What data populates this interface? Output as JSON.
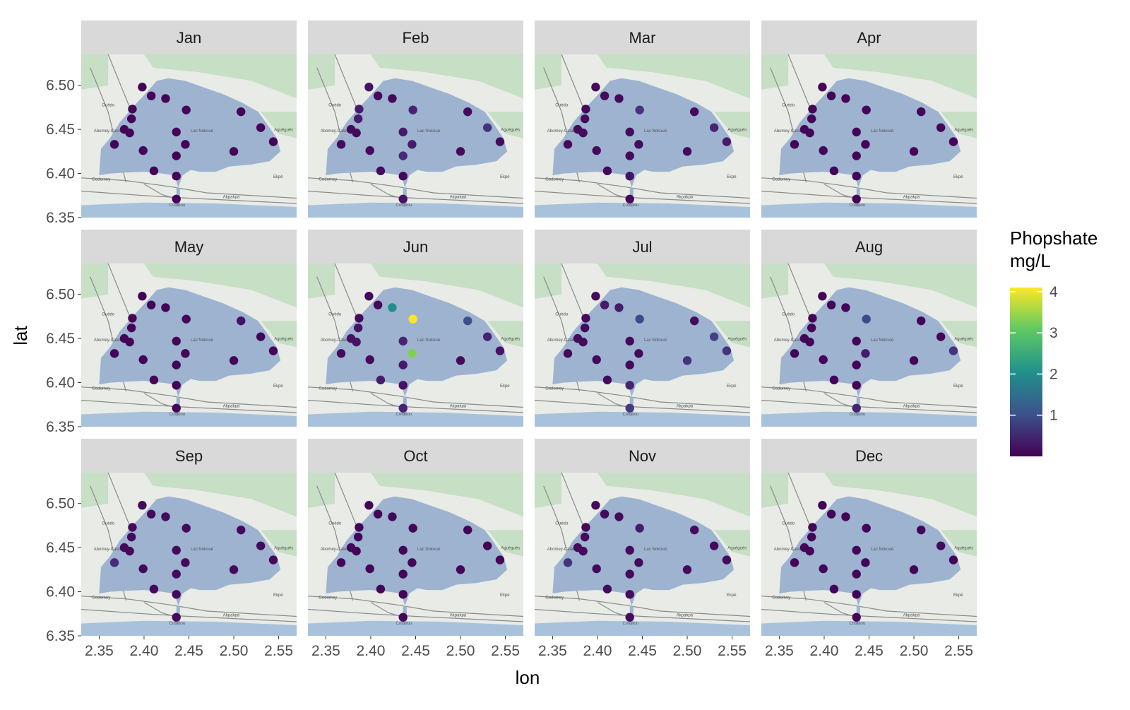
{
  "chart_data": {
    "type": "scatter",
    "facet_by": "month",
    "layout": {
      "rows": 3,
      "cols": 4
    },
    "xlabel": "lon",
    "ylabel": "lat",
    "xlim": [
      2.33,
      2.57
    ],
    "ylim": [
      6.35,
      6.535
    ],
    "xticks": [
      2.35,
      2.4,
      2.45,
      2.5,
      2.55
    ],
    "xtick_labels": [
      "2.35",
      "2.40",
      "2.45",
      "2.50",
      "2.55"
    ],
    "yticks": [
      6.35,
      6.4,
      6.45,
      6.5
    ],
    "ytick_labels": [
      "6.35",
      "6.40",
      "6.45",
      "6.50"
    ],
    "legend": {
      "title_lines": [
        "Phopshate",
        "mg/L"
      ],
      "placement": "right",
      "scale": "viridis",
      "min": 0,
      "max": 4.1,
      "ticks": [
        1,
        2,
        3,
        4
      ],
      "tick_labels": [
        "1",
        "2",
        "3",
        "4"
      ]
    },
    "colors": {
      "panel_strip": "#d9d9d9",
      "lagoon": "#9db3cf",
      "land": "#e8ebe6",
      "vegetation": "#c7dfc4",
      "ocean": "#a9c2dc",
      "road": "#8a8a8a"
    },
    "basemap_labels": [
      "Abomey-Calavi",
      "Cotonou",
      "Ouèdo",
      "Aguégués",
      "Akpakpa",
      "Ekpè",
      "Godomey",
      "Lac Nokoué"
    ],
    "stations": [
      {
        "lon": 2.398,
        "lat": 6.498
      },
      {
        "lon": 2.408,
        "lat": 6.488
      },
      {
        "lon": 2.424,
        "lat": 6.485
      },
      {
        "lon": 2.387,
        "lat": 6.473
      },
      {
        "lon": 2.447,
        "lat": 6.472
      },
      {
        "lon": 2.508,
        "lat": 6.47
      },
      {
        "lon": 2.386,
        "lat": 6.462
      },
      {
        "lon": 2.53,
        "lat": 6.452
      },
      {
        "lon": 2.378,
        "lat": 6.45
      },
      {
        "lon": 2.384,
        "lat": 6.446
      },
      {
        "lon": 2.436,
        "lat": 6.447
      },
      {
        "lon": 2.367,
        "lat": 6.433
      },
      {
        "lon": 2.446,
        "lat": 6.433
      },
      {
        "lon": 2.544,
        "lat": 6.436
      },
      {
        "lon": 2.399,
        "lat": 6.426
      },
      {
        "lon": 2.5,
        "lat": 6.425
      },
      {
        "lon": 2.436,
        "lat": 6.42
      },
      {
        "lon": 2.411,
        "lat": 6.403
      },
      {
        "lon": 2.436,
        "lat": 6.397
      },
      {
        "lon": 2.436,
        "lat": 6.371
      }
    ],
    "panels": [
      {
        "month": "Jan",
        "values": [
          0.05,
          0.05,
          0.05,
          0.05,
          0.05,
          0.05,
          0.05,
          0.05,
          0.05,
          0.05,
          0.05,
          0.05,
          0.05,
          0.05,
          0.05,
          0.05,
          0.05,
          0.05,
          0.05,
          0.05
        ]
      },
      {
        "month": "Feb",
        "values": [
          0.2,
          0.1,
          0.1,
          0.3,
          0.4,
          0.1,
          0.3,
          0.6,
          0.1,
          0.1,
          0.3,
          0.1,
          0.3,
          0.1,
          0.1,
          0.1,
          0.5,
          0.1,
          0.1,
          0.2
        ]
      },
      {
        "month": "Mar",
        "values": [
          0.1,
          0.1,
          0.1,
          0.1,
          0.6,
          0.1,
          0.1,
          0.4,
          0.1,
          0.1,
          0.1,
          0.1,
          0.1,
          0.3,
          0.1,
          0.1,
          0.1,
          0.1,
          0.2,
          0.1
        ]
      },
      {
        "month": "Apr",
        "values": [
          0.05,
          0.05,
          0.05,
          0.05,
          0.05,
          0.05,
          0.05,
          0.05,
          0.05,
          0.05,
          0.05,
          0.05,
          0.05,
          0.05,
          0.05,
          0.05,
          0.05,
          0.05,
          0.05,
          0.05
        ]
      },
      {
        "month": "May",
        "values": [
          0.05,
          0.05,
          0.05,
          0.05,
          0.05,
          0.2,
          0.05,
          0.05,
          0.05,
          0.05,
          0.05,
          0.05,
          0.05,
          0.05,
          0.05,
          0.05,
          0.05,
          0.05,
          0.05,
          0.05
        ]
      },
      {
        "month": "Jun",
        "values": [
          0.1,
          0.1,
          2.0,
          0.1,
          4.1,
          1.0,
          0.2,
          0.4,
          0.2,
          0.2,
          0.4,
          0.1,
          3.3,
          0.2,
          0.1,
          0.1,
          0.3,
          0.3,
          0.2,
          0.4
        ]
      },
      {
        "month": "Jul",
        "values": [
          0.1,
          0.3,
          0.3,
          0.1,
          0.9,
          0.1,
          0.1,
          0.8,
          0.1,
          0.1,
          0.1,
          0.1,
          0.1,
          0.6,
          0.1,
          0.6,
          0.1,
          0.1,
          0.4,
          0.7
        ]
      },
      {
        "month": "Aug",
        "values": [
          0.05,
          0.05,
          0.05,
          0.05,
          0.9,
          0.05,
          0.05,
          0.05,
          0.05,
          0.05,
          0.05,
          0.05,
          0.3,
          0.6,
          0.05,
          0.05,
          0.05,
          0.05,
          0.05,
          0.4
        ]
      },
      {
        "month": "Sep",
        "values": [
          0.1,
          0.1,
          0.1,
          0.1,
          0.1,
          0.1,
          0.1,
          0.1,
          0.1,
          0.1,
          0.1,
          0.5,
          0.1,
          0.1,
          0.1,
          0.1,
          0.1,
          0.1,
          0.1,
          0.1
        ]
      },
      {
        "month": "Oct",
        "values": [
          0.05,
          0.05,
          0.05,
          0.05,
          0.05,
          0.05,
          0.05,
          0.05,
          0.05,
          0.05,
          0.05,
          0.05,
          0.05,
          0.05,
          0.05,
          0.05,
          0.05,
          0.05,
          0.05,
          0.05
        ]
      },
      {
        "month": "Nov",
        "values": [
          0.1,
          0.1,
          0.1,
          0.1,
          0.3,
          0.1,
          0.1,
          0.1,
          0.1,
          0.1,
          0.1,
          0.6,
          0.1,
          0.1,
          0.1,
          0.1,
          0.1,
          0.1,
          0.1,
          0.1
        ]
      },
      {
        "month": "Dec",
        "values": [
          0.05,
          0.05,
          0.05,
          0.05,
          0.05,
          0.05,
          0.05,
          0.1,
          0.05,
          0.05,
          0.05,
          0.05,
          0.05,
          0.05,
          0.05,
          0.05,
          0.05,
          0.05,
          0.05,
          0.05
        ]
      }
    ]
  }
}
